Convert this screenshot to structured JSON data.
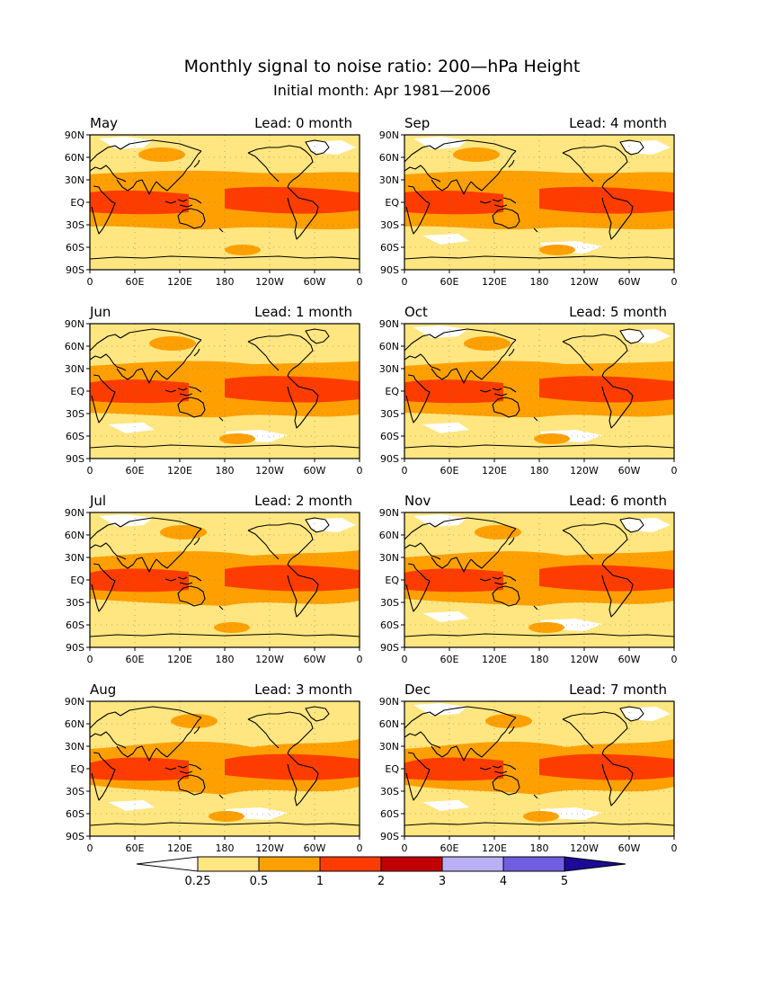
{
  "title": "Monthly signal to noise ratio: 200—hPa Height",
  "subtitle": "Initial month: Apr 1981—2006",
  "lat_labels": [
    "90N",
    "60N",
    "30N",
    "EQ",
    "30S",
    "60S",
    "90S"
  ],
  "lon_labels": [
    "0",
    "60E",
    "120E",
    "180",
    "120W",
    "60W",
    "0"
  ],
  "panels": [
    {
      "month": "May",
      "lead": "Lead: 0 month",
      "lead_months": 0
    },
    {
      "month": "Sep",
      "lead": "Lead: 4 month",
      "lead_months": 4
    },
    {
      "month": "Jun",
      "lead": "Lead: 1 month",
      "lead_months": 1
    },
    {
      "month": "Oct",
      "lead": "Lead: 5 month",
      "lead_months": 5
    },
    {
      "month": "Jul",
      "lead": "Lead: 2 month",
      "lead_months": 2
    },
    {
      "month": "Nov",
      "lead": "Lead: 6 month",
      "lead_months": 6
    },
    {
      "month": "Aug",
      "lead": "Lead: 3 month",
      "lead_months": 3
    },
    {
      "month": "Dec",
      "lead": "Lead: 7 month",
      "lead_months": 7
    }
  ],
  "colorbar": {
    "labels": [
      "0.25",
      "0.5",
      "1",
      "2",
      "3",
      "4",
      "5"
    ],
    "colors": [
      "#ffffff",
      "#ffe680",
      "#ffa000",
      "#ff3c00",
      "#c00000",
      "#b9b0f5",
      "#6f5fe0",
      "#1d0a96"
    ]
  },
  "fill_colors": {
    "lt025": "#ffffff",
    "c025": "#ffe680",
    "c05": "#ffa000",
    "c1": "#ff3c00"
  },
  "coast_color": "#000000"
}
